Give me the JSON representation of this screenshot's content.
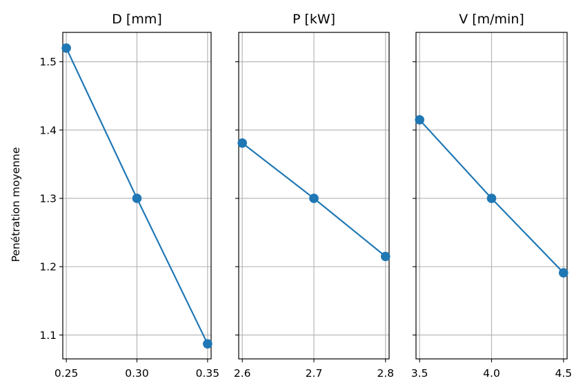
{
  "chart_data": {
    "type": "line",
    "ylabel": "Penétration moyenne",
    "ylim": [
      1.065,
      1.543
    ],
    "yticks": [
      1.1,
      1.2,
      1.3,
      1.4,
      1.5
    ],
    "ytick_labels": [
      "1.1",
      "1.2",
      "1.3",
      "1.4",
      "1.5"
    ],
    "grid": true,
    "shared_y": true,
    "color": "#1f77b4",
    "panels": [
      {
        "title": "D [mm]",
        "x": [
          0.25,
          0.3,
          0.35
        ],
        "y": [
          1.52,
          1.3,
          1.087
        ],
        "xlim": [
          0.2475,
          0.3525
        ],
        "xticks": [
          0.25,
          0.3,
          0.35
        ],
        "xtick_labels": [
          "0.25",
          "0.30",
          "0.35"
        ]
      },
      {
        "title": "P [kW]",
        "x": [
          2.6,
          2.7,
          2.8
        ],
        "y": [
          1.381,
          1.3,
          1.215
        ],
        "xlim": [
          2.595,
          2.805
        ],
        "xticks": [
          2.6,
          2.7,
          2.8
        ],
        "xtick_labels": [
          "2.6",
          "2.7",
          "2.8"
        ]
      },
      {
        "title": "V [m/min]",
        "x": [
          3.5,
          4.0,
          4.5
        ],
        "y": [
          1.415,
          1.3,
          1.191
        ],
        "xlim": [
          3.475,
          4.525
        ],
        "xticks": [
          3.5,
          4.0,
          4.5
        ],
        "xtick_labels": [
          "3.5",
          "4.0",
          "4.5"
        ]
      }
    ]
  }
}
